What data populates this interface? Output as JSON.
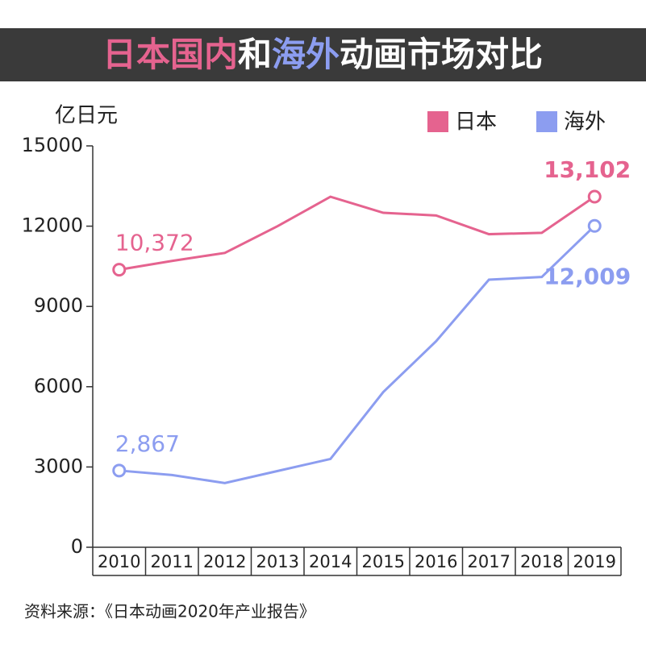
{
  "chart_data": {
    "type": "line",
    "title_segments": [
      {
        "text": "日本国内",
        "color": "#e5638f"
      },
      {
        "text": "和",
        "color": "#ffffff"
      },
      {
        "text": "海外",
        "color": "#8c9df0"
      },
      {
        "text": "动画市场对比",
        "color": "#ffffff"
      }
    ],
    "y_label": "亿日元",
    "categories": [
      "2010",
      "2011",
      "2012",
      "2013",
      "2014",
      "2015",
      "2016",
      "2017",
      "2018",
      "2019"
    ],
    "series": [
      {
        "name": "日本",
        "color": "#e5638f",
        "values": [
          10372,
          10700,
          11000,
          12000,
          13100,
          12500,
          12400,
          11700,
          11750,
          13102
        ],
        "value_labels": [
          "10,372",
          null,
          null,
          null,
          null,
          null,
          null,
          null,
          null,
          "13,102"
        ]
      },
      {
        "name": "海外",
        "color": "#8c9df0",
        "values": [
          2867,
          2700,
          2400,
          2850,
          3300,
          5800,
          7700,
          10000,
          10100,
          12009
        ],
        "value_labels": [
          "2,867",
          null,
          null,
          null,
          null,
          null,
          null,
          null,
          null,
          "12,009"
        ]
      }
    ],
    "ylim": [
      0,
      15000
    ],
    "yticks": [
      0,
      3000,
      6000,
      9000,
      12000,
      15000
    ],
    "source": "资料来源：《日本动画2020年产业报告》"
  }
}
